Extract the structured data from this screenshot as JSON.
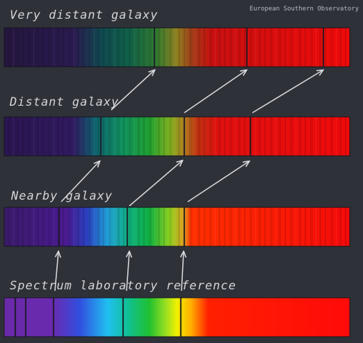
{
  "credit": "European Southern Observatory",
  "panels": [
    {
      "label": "Very distant galaxy"
    },
    {
      "label": "Distant galaxy"
    },
    {
      "label": "Nearby galaxy"
    },
    {
      "label": "Spectrum laboratory reference"
    }
  ]
}
